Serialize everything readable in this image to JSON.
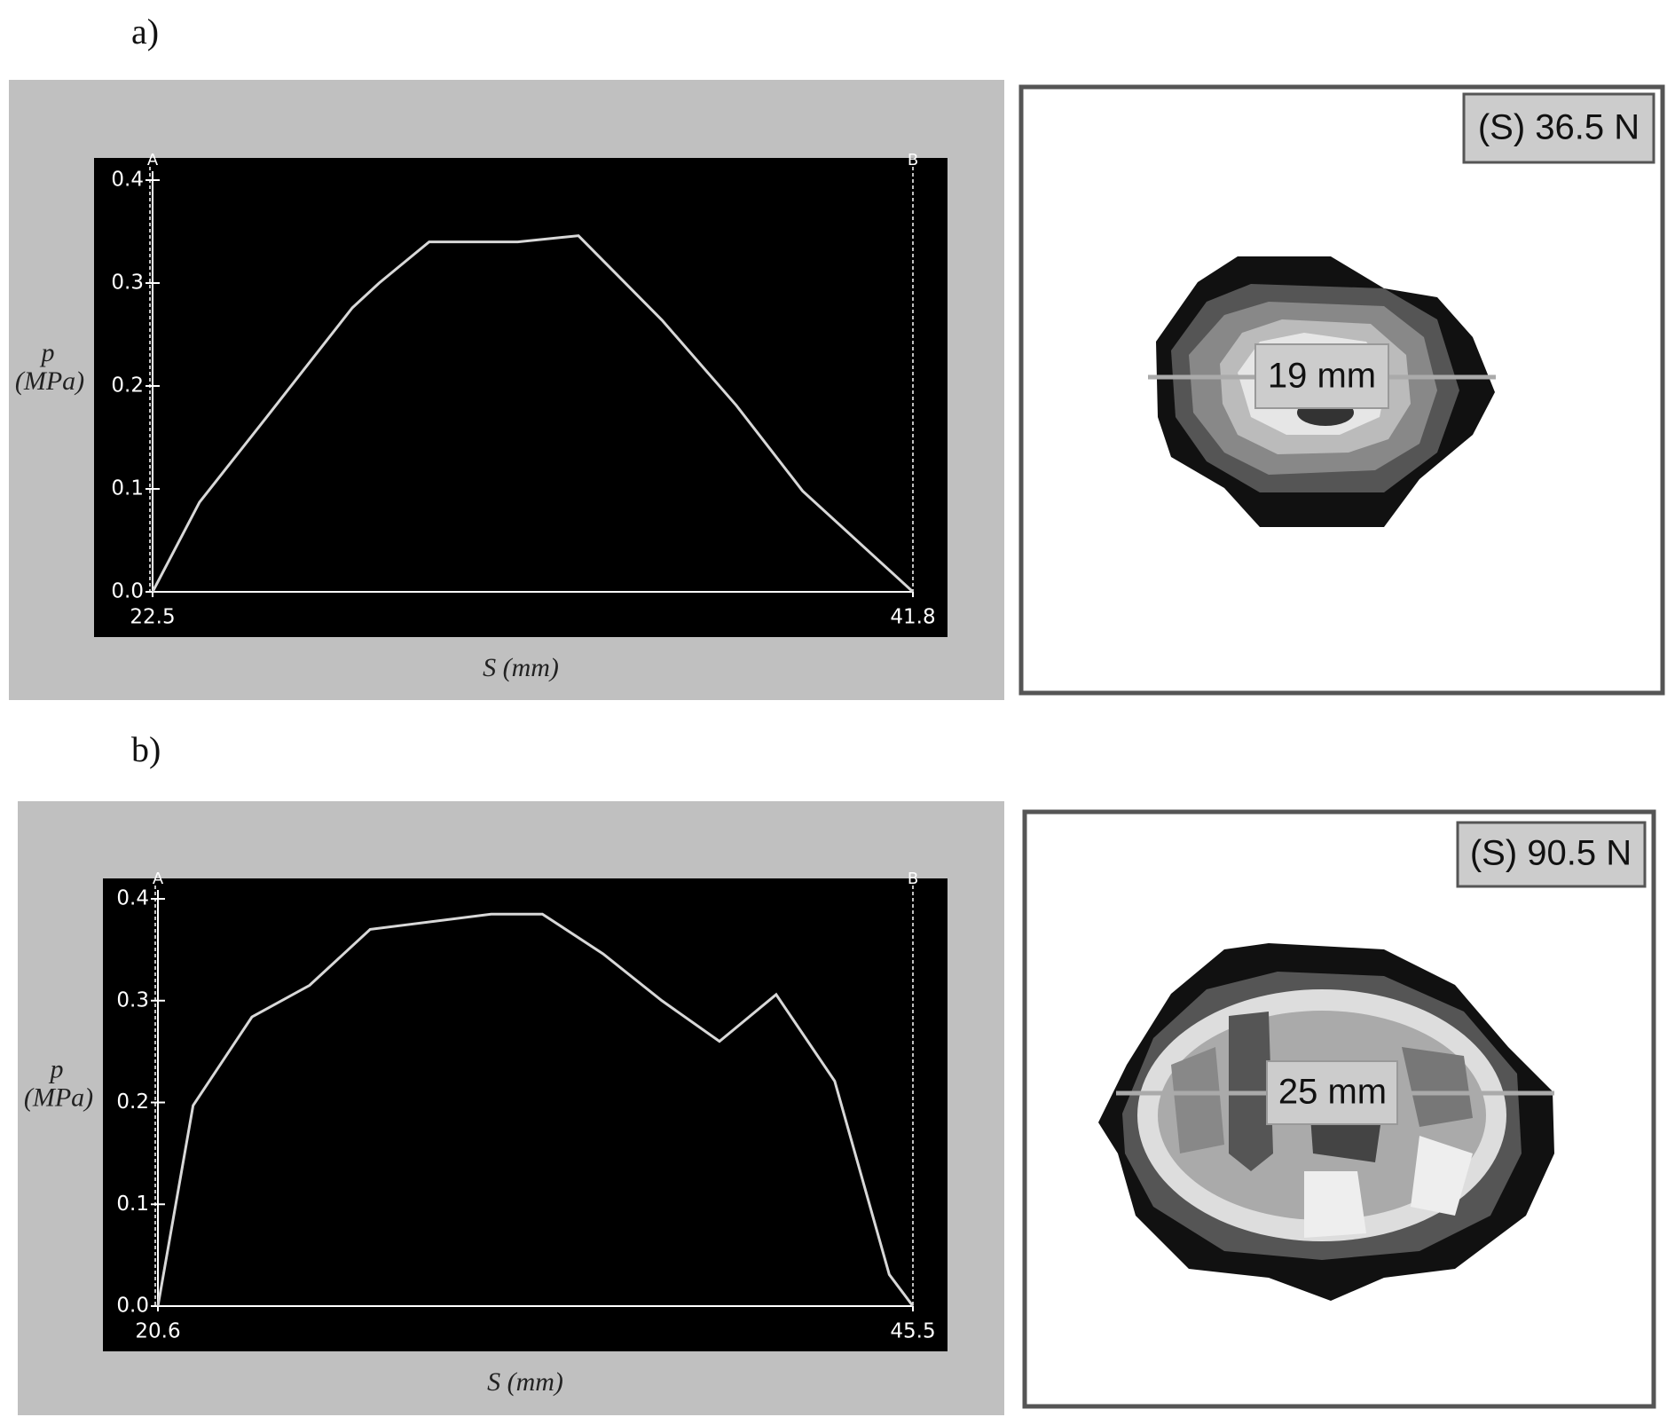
{
  "panel_labels": [
    "a)",
    "b)"
  ],
  "chart_data": [
    {
      "type": "line",
      "xlabel": "S (mm)",
      "ylabel": [
        "p",
        "(MPa)"
      ],
      "markers": [
        "A",
        "B"
      ],
      "x": [
        22.5,
        23.69,
        25.4,
        27.57,
        28.25,
        29.52,
        31.77,
        33.31,
        35.43,
        37.32,
        39.0,
        41.8
      ],
      "series": [
        {
          "color": "#d8d8d8",
          "values": [
            0,
            0.087,
            0.17,
            0.276,
            0.3,
            0.34,
            0.34,
            0.346,
            0.264,
            0.181,
            0.098,
            0
          ]
        }
      ],
      "xlim": [
        22.5,
        41.8
      ],
      "xticks": [
        22.5,
        41.8
      ],
      "ylim": [
        0,
        0.4
      ],
      "yticks": [
        {
          "value": 0,
          "label": "0.0"
        },
        0.1,
        0.2,
        0.3,
        0.4
      ]
    },
    {
      "type": "line",
      "xlabel": "S (mm)",
      "ylabel": [
        "p",
        "(MPa)"
      ],
      "markers": [
        "A",
        "B"
      ],
      "x": [
        20.6,
        21.76,
        23.7,
        25.6,
        27.6,
        31.59,
        33.28,
        35.28,
        37.22,
        39.12,
        40.99,
        42.92,
        44.72,
        45.5
      ],
      "series": [
        {
          "color": "#d8d8d8",
          "values": [
            0,
            0.197,
            0.284,
            0.315,
            0.37,
            0.385,
            0.385,
            0.346,
            0.3,
            0.26,
            0.306,
            0.221,
            0.031,
            0
          ]
        }
      ],
      "xlim": [
        20.6,
        45.5
      ],
      "xticks": [
        20.6,
        45.5
      ],
      "ylim": [
        0,
        0.4
      ],
      "yticks": [
        {
          "value": 0,
          "label": "0.0"
        },
        0.1,
        0.2,
        0.3,
        0.4
      ]
    }
  ],
  "maps": [
    {
      "force": "(S) 36.5 N",
      "width": "19 mm"
    },
    {
      "force": "(S) 90.5 N",
      "width": "25 mm"
    }
  ]
}
